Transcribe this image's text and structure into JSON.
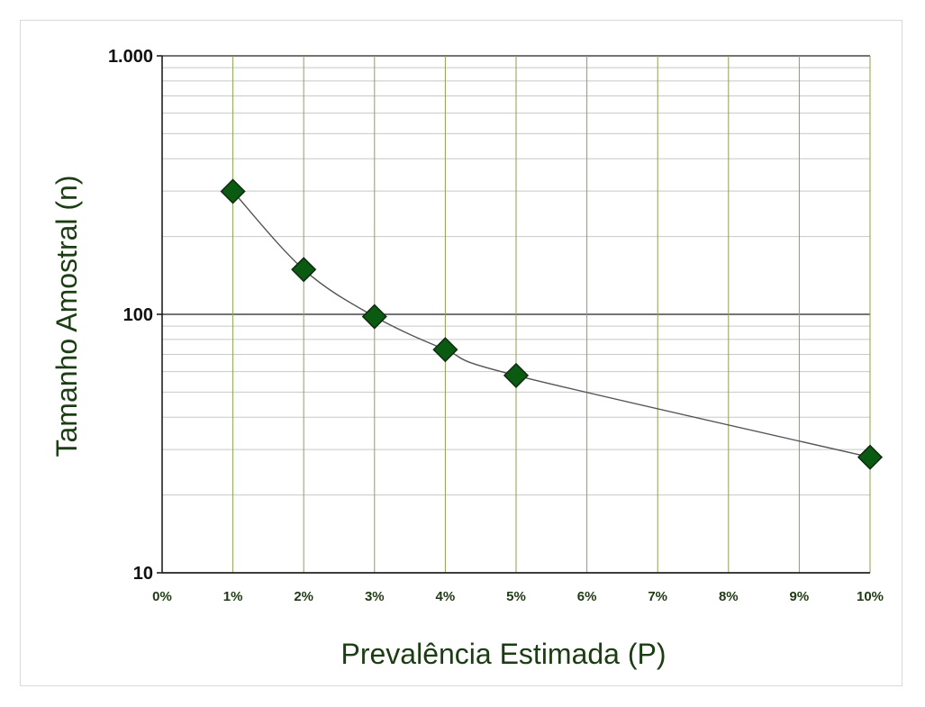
{
  "chart_data": {
    "type": "scatter",
    "title": "",
    "xlabel": "Prevalência Estimada (P)",
    "ylabel": "Tamanho Amostral (n)",
    "y_scale": "log",
    "ylim": [
      10,
      1000
    ],
    "xlim": [
      0,
      10
    ],
    "x_ticks": [
      0,
      1,
      2,
      3,
      4,
      5,
      6,
      7,
      8,
      9,
      10
    ],
    "x_tick_labels": [
      "0%",
      "1%",
      "2%",
      "3%",
      "4%",
      "5%",
      "6%",
      "7%",
      "8%",
      "9%",
      "10%"
    ],
    "y_ticks": [
      10,
      100,
      1000
    ],
    "y_tick_labels": [
      "10",
      "100",
      "1.000"
    ],
    "grid": true,
    "legend": "none",
    "series": [
      {
        "x": [
          1,
          2,
          3,
          4,
          5,
          10
        ],
        "y": [
          299,
          149,
          98,
          73,
          58,
          28
        ],
        "marker": "diamond",
        "trend_line": "smooth"
      }
    ],
    "colors": {
      "marker_fill": "#0b5a12",
      "marker_stroke": "#0f2a0f",
      "vertical_grid": "#8aa34f",
      "horizontal_grid": "#c8c8c8",
      "major_grid": "#222222",
      "curve": "#555555",
      "axis_title": "#1c3d14"
    }
  }
}
